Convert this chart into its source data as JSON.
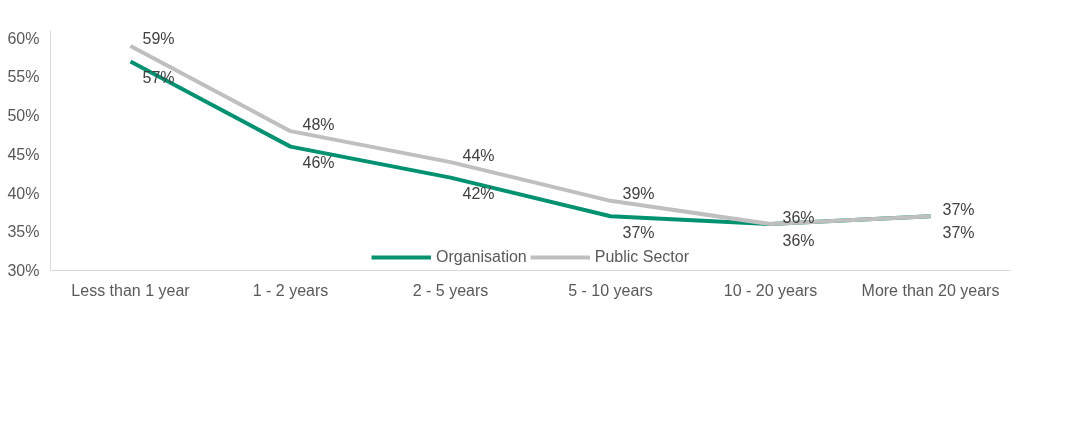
{
  "chart_data": {
    "type": "line",
    "categories": [
      "Less than 1 year",
      "1 - 2 years",
      "2 - 5 years",
      "5 - 10 years",
      "10 - 20 years",
      "More than 20 years"
    ],
    "series": [
      {
        "name": "Organisation",
        "color": "#009270",
        "values": [
          57,
          46,
          42,
          37,
          36,
          37
        ],
        "value_labels": [
          "57%",
          "46%",
          "42%",
          "37%",
          "36%",
          "37%"
        ]
      },
      {
        "name": "Public Sector",
        "color": "#bfbfbf",
        "values": [
          59,
          48,
          44,
          39,
          36,
          37
        ],
        "value_labels": [
          "59%",
          "48%",
          "44%",
          "39%",
          "36%",
          "37%"
        ]
      }
    ],
    "ylim": [
      30,
      61
    ],
    "yticks": [
      {
        "value": 30,
        "label": "30%"
      },
      {
        "value": 35,
        "label": "35%"
      },
      {
        "value": 40,
        "label": "40%"
      },
      {
        "value": 45,
        "label": "45%"
      },
      {
        "value": 50,
        "label": "50%"
      },
      {
        "value": 55,
        "label": "55%"
      },
      {
        "value": 60,
        "label": "60%"
      }
    ],
    "grid": false,
    "legend": "bottom",
    "marker": "none",
    "line_style": "solid"
  }
}
